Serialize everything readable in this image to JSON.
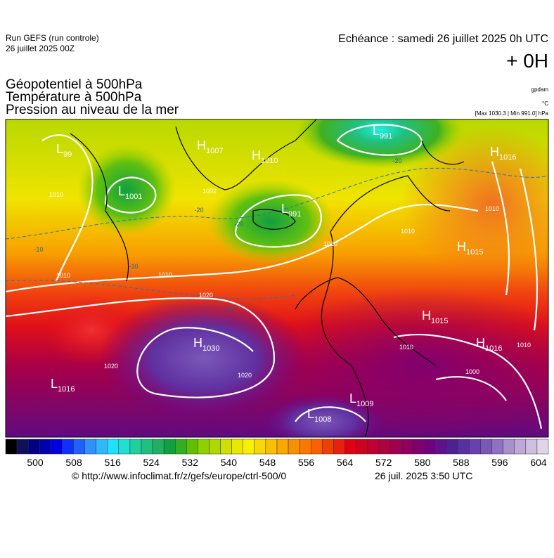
{
  "header": {
    "run": "Run GEFS (run controle)",
    "run_date": "26 juillet 2025 00Z",
    "echeance": "Echéance : samedi 26 juillet 2025 0h UTC",
    "lead": "+ 0H",
    "titles": [
      "Géopotentiel à 500hPa",
      "Température à 500hPa",
      "Pression au niveau de la mer"
    ],
    "units": [
      "gpdam",
      "°C",
      "[Max 1030.3 | Min 991.0] hPa"
    ]
  },
  "map": {
    "centers": [
      {
        "type": "L",
        "value": "99"
      },
      {
        "type": "H",
        "value": "1007"
      },
      {
        "type": "H",
        "value": "1010"
      },
      {
        "type": "L",
        "value": "1001"
      },
      {
        "type": "L",
        "value": "991"
      },
      {
        "type": "L",
        "value": "991"
      },
      {
        "type": "H",
        "value": "1016"
      },
      {
        "type": "H",
        "value": "1015"
      },
      {
        "type": "H",
        "value": "1015"
      },
      {
        "type": "H",
        "value": "1016"
      },
      {
        "type": "H",
        "value": "1030"
      },
      {
        "type": "L",
        "value": "1016"
      },
      {
        "type": "L",
        "value": "1009"
      },
      {
        "type": "L",
        "value": "1008"
      }
    ],
    "isobar_labels": [
      "1002",
      "1010",
      "1010",
      "1010",
      "1010",
      "1020",
      "1020",
      "1020",
      "1000",
      "1010",
      "1010",
      "1010",
      "1010"
    ],
    "temperature_labels": [
      "-20",
      "-20",
      "-20",
      "-10",
      "-10",
      "-10"
    ]
  },
  "colorbar": {
    "ticks": [
      500,
      508,
      516,
      524,
      532,
      540,
      548,
      556,
      564,
      572,
      580,
      588,
      596,
      604
    ],
    "colors": [
      "#000000",
      "#10105a",
      "#000080",
      "#0000b0",
      "#0000e0",
      "#1030ff",
      "#2060ff",
      "#3090ff",
      "#30b8ff",
      "#20e0ff",
      "#20e0d0",
      "#20d0a0",
      "#20c080",
      "#20b060",
      "#10a040",
      "#30b020",
      "#60c000",
      "#90d000",
      "#b0d800",
      "#d0e000",
      "#e8e800",
      "#f8f000",
      "#f8d800",
      "#f8c000",
      "#f8a800",
      "#f89000",
      "#f87800",
      "#f86000",
      "#f04000",
      "#e82010",
      "#e00010",
      "#d00020",
      "#c00030",
      "#b00040",
      "#a00050",
      "#900060",
      "#800070",
      "#700080",
      "#60108a",
      "#502090",
      "#5a30a0",
      "#6a40b0",
      "#7a58b8",
      "#9070c0",
      "#a890cc",
      "#c0a8d8",
      "#d0c0e0",
      "#e0d4ec"
    ]
  },
  "footer": {
    "url": "© http://www.infoclimat.fr/z/gefs/europe/ctrl-500/0",
    "timestamp": "26 juil. 2025  3:50 UTC"
  }
}
